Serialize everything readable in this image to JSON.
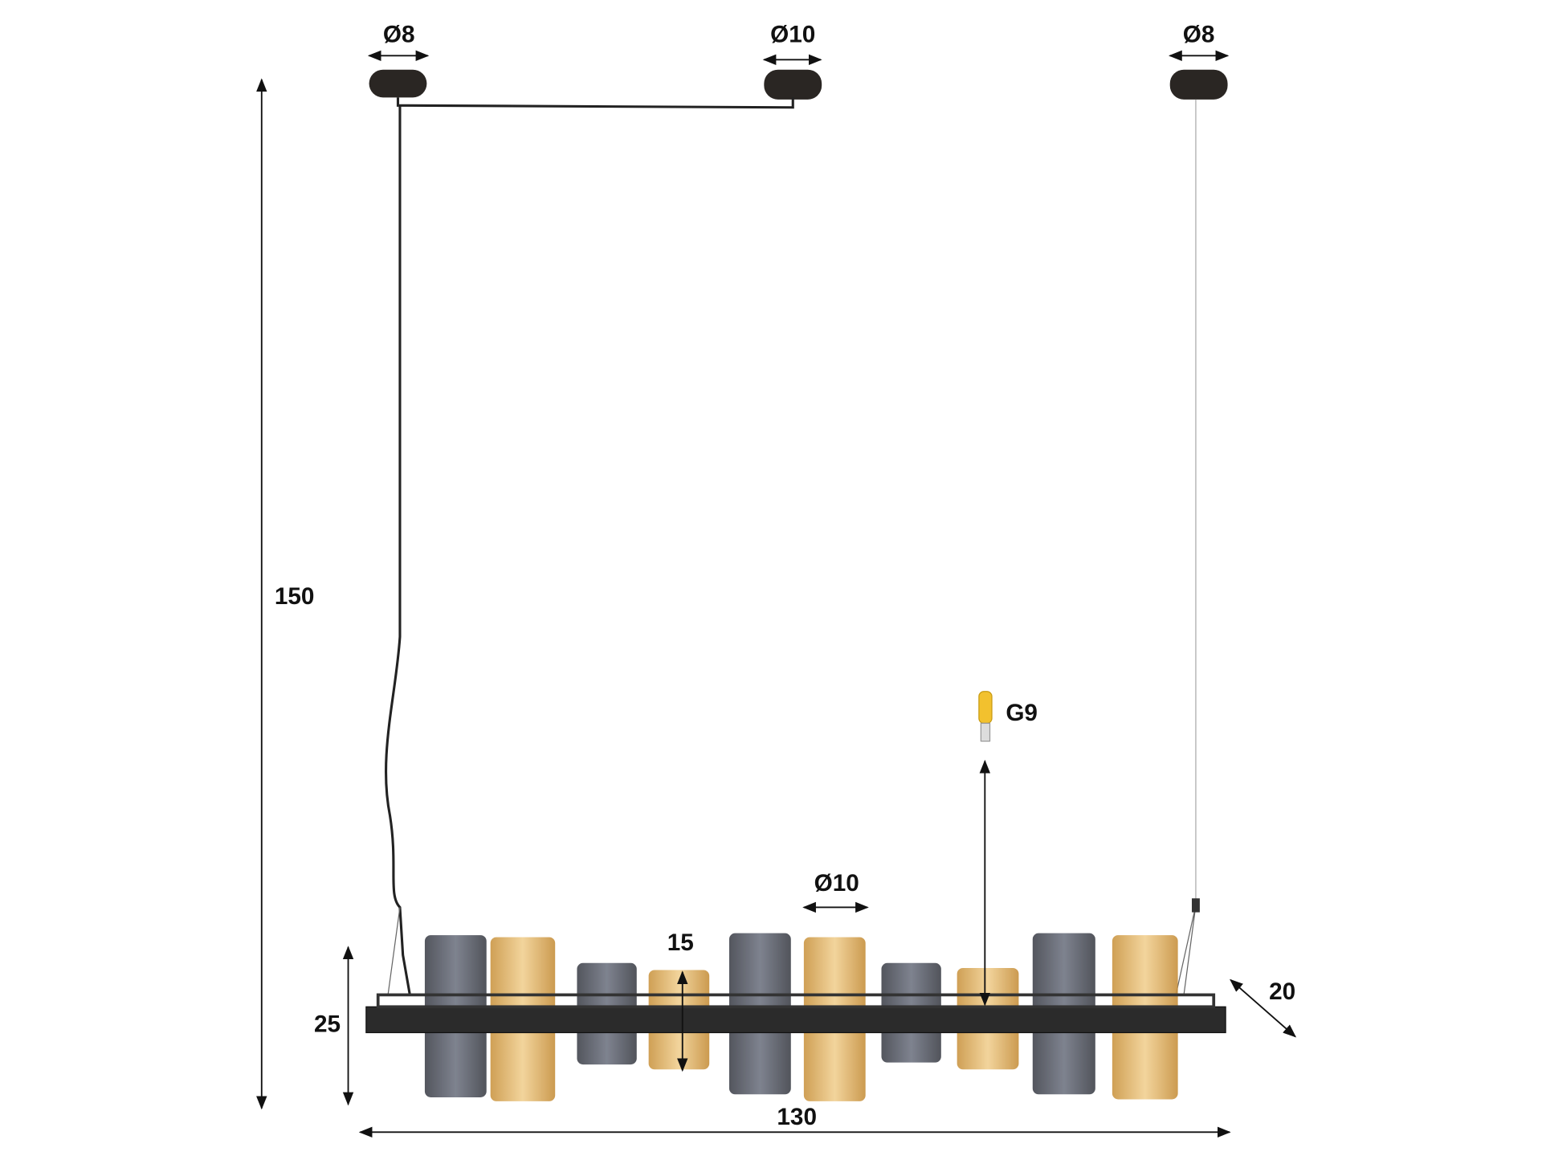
{
  "dimensions": {
    "canopy_left": "Ø8",
    "canopy_middle": "Ø10",
    "canopy_right": "Ø8",
    "total_height": "150",
    "bulb": "G9",
    "shade_diameter": "Ø10",
    "shade_height": "15",
    "depth": "20",
    "fixture_height": "25",
    "width": "130"
  }
}
